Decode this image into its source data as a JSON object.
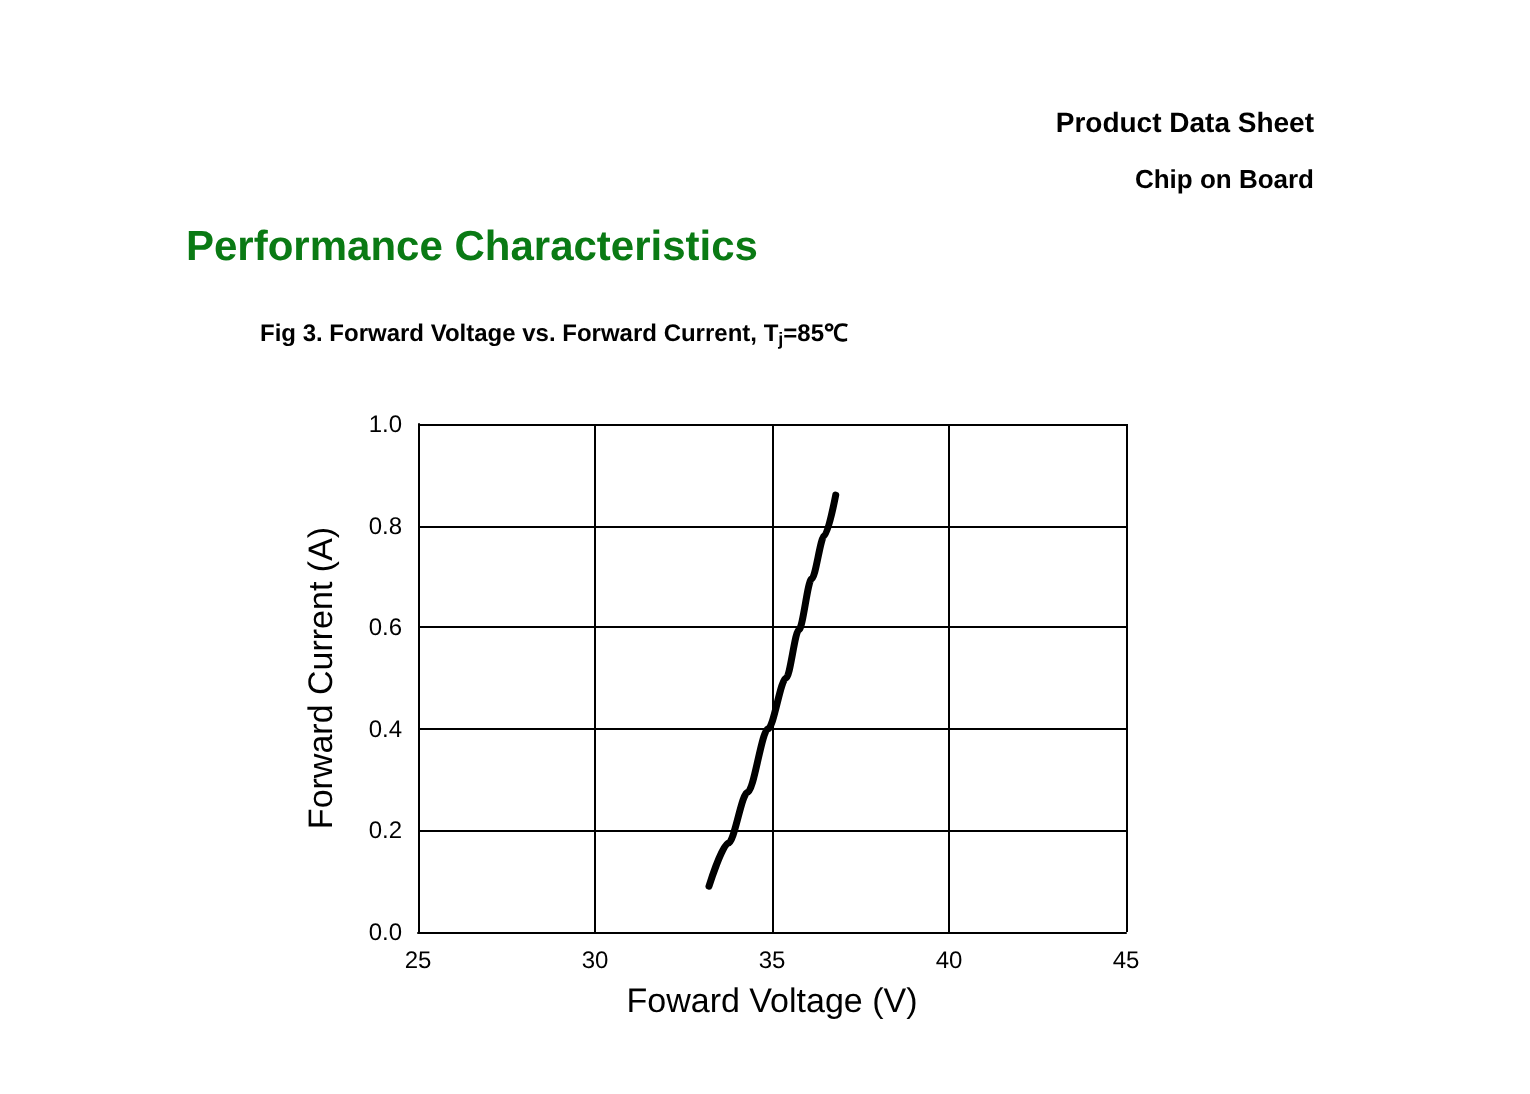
{
  "chart_data": {
    "type": "line",
    "title": "Performance Characteristics",
    "subtitle": "Fig 3. Forward Voltage vs. Forward Current, T$_{j}$=85℃",
    "annotations": [
      "Product Data Sheet",
      "Chip on Board"
    ],
    "xlabel": "Foward Voltage (V)",
    "ylabel": "Forward Current (A)",
    "x": [
      33.22,
      33.77,
      34.31,
      34.89,
      35.4,
      35.76,
      36.12,
      36.48,
      36.8
    ],
    "series": [
      {
        "color": "#000000",
        "values": [
          0.09,
          0.175,
          0.275,
          0.4,
          0.5,
          0.595,
          0.695,
          0.78,
          0.86
        ]
      }
    ],
    "xlim": [
      25,
      45
    ],
    "xticks": [
      25,
      30,
      35,
      40,
      45
    ],
    "ylim": [
      0,
      1
    ],
    "yticks": [
      {
        "value": 0,
        "label": "0.0"
      },
      0.2,
      0.4,
      0.6,
      0.8,
      {
        "value": 1,
        "label": "1.0"
      }
    ],
    "grid": true,
    "marker": "none",
    "line_style": "solid"
  }
}
